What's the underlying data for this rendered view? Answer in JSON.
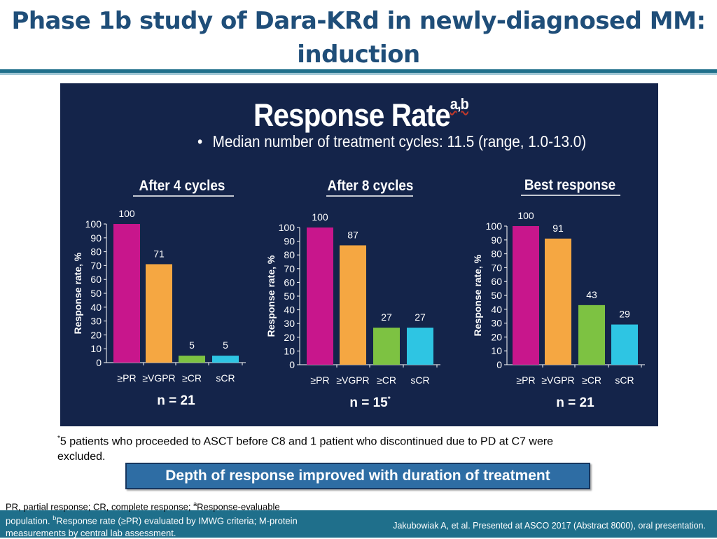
{
  "slide": {
    "title_line1": "Phase 1b study of Dara-KRd in newly-diagnosed MM:",
    "title_line2": "induction"
  },
  "panel": {
    "title": "Response Rate",
    "title_sup": "a,b",
    "bullet": "Median number of treatment cycles: 11.5 (range, 1.0-13.0)"
  },
  "chart_data": [
    {
      "type": "bar",
      "title": "After 4 cycles",
      "categories": [
        "≥PR",
        "≥VGPR",
        "≥CR",
        "sCR"
      ],
      "values": [
        100,
        71,
        5,
        5
      ],
      "ylabel": "Response rate, %",
      "ylim": [
        0,
        100
      ],
      "yticks": [
        0,
        10,
        20,
        30,
        40,
        50,
        60,
        70,
        80,
        90,
        100
      ],
      "n_label": "n = 21",
      "n_sup": ""
    },
    {
      "type": "bar",
      "title": "After 8 cycles",
      "categories": [
        "≥PR",
        "≥VGPR",
        "≥CR",
        "sCR"
      ],
      "values": [
        100,
        87,
        27,
        27
      ],
      "ylabel": "Response rate, %",
      "ylim": [
        0,
        100
      ],
      "yticks": [
        0,
        10,
        20,
        30,
        40,
        50,
        60,
        70,
        80,
        90,
        100
      ],
      "n_label": "n = 15",
      "n_sup": "*"
    },
    {
      "type": "bar",
      "title": "Best response",
      "categories": [
        "≥PR",
        "≥VGPR",
        "≥CR",
        "sCR"
      ],
      "values": [
        100,
        91,
        43,
        29
      ],
      "ylabel": "Response rate, %",
      "ylim": [
        0,
        100
      ],
      "yticks": [
        0,
        10,
        20,
        30,
        40,
        50,
        60,
        70,
        80,
        90,
        100
      ],
      "n_label": "n = 21",
      "n_sup": ""
    }
  ],
  "colors": {
    "bars": [
      "#c8168c",
      "#f5a742",
      "#7dc242",
      "#2ec5e3"
    ],
    "panel_bg": "#14244a",
    "title": "#1f4e79"
  },
  "footnote": {
    "sup": "*",
    "text": "5 patients who proceeded to ASCT before C8 and 1 patient who discontinued due to PD  at C7 were excluded."
  },
  "banner": "Depth of response improved with duration of treatment",
  "abbreviations": {
    "line1_text": "PR, partial response; CR, complete response; ",
    "line1_sup": "a",
    "line1_tail": "Response-evaluable",
    "line2_text": "population. ",
    "line2_sup": "b",
    "line2_tail": "Response rate (≥PR) evaluated by IMWG criteria; M-protein",
    "line3_text": "measurements by central lab assessment."
  },
  "citation": "Jakubowiak A, et al. Presented at ASCO 2017 (Abstract 8000), oral presentation."
}
